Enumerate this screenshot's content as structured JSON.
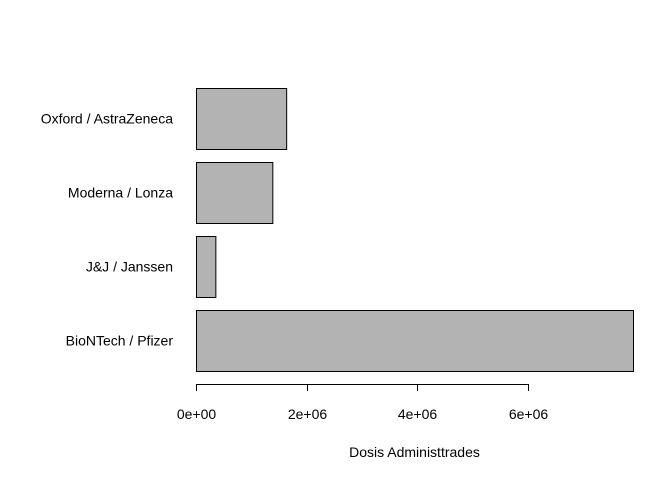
{
  "chart_data": {
    "type": "bar",
    "orientation": "horizontal",
    "categories": [
      "BioNTech / Pfizer",
      "J&J / Janssen",
      "Moderna / Lonza",
      "Oxford / AstraZeneca"
    ],
    "values": [
      7900000,
      350000,
      1380000,
      1630000
    ],
    "title": "",
    "xlabel": "Dosis Administtrades",
    "ylabel": "",
    "xlim": [
      0,
      7900000
    ],
    "x_ticks": [
      0,
      2000000,
      4000000,
      6000000
    ],
    "x_tick_labels": [
      "0e+00",
      "2e+06",
      "4e+06",
      "6e+06"
    ],
    "grid": false,
    "legend": "none",
    "bar_fill": "#b3b3b3",
    "bar_stroke": "#000000"
  }
}
